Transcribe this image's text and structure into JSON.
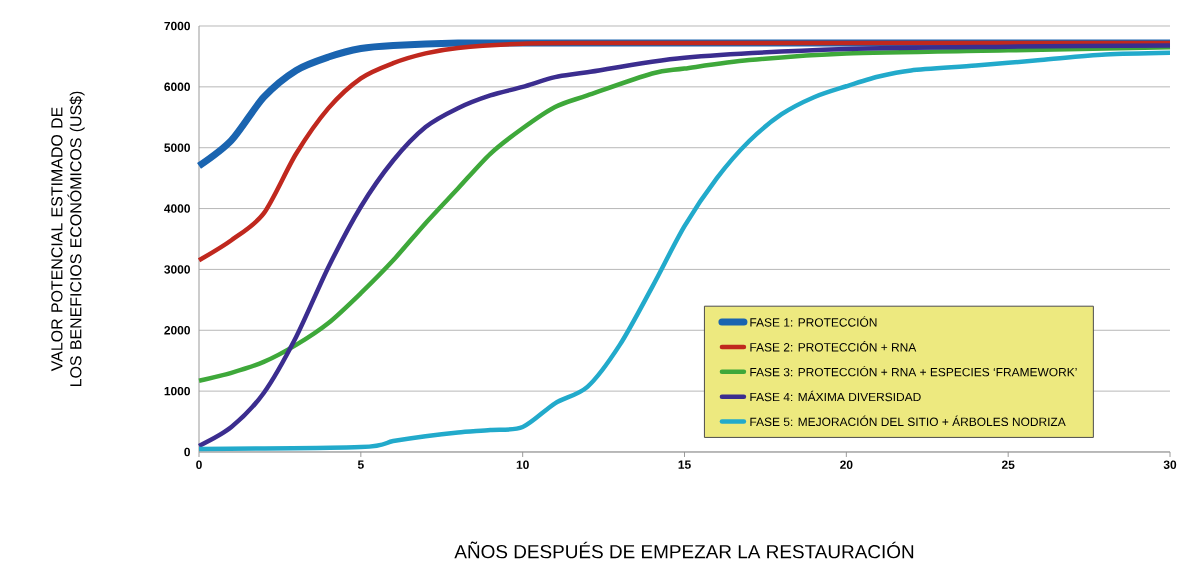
{
  "chart_data": {
    "type": "line",
    "xlabel": "AÑOS DESPUÉS DE EMPEZAR LA RESTAURACIÓN",
    "ylabel": "VALOR POTENCIAL ESTIMADO DE LOS BENEFICIOS ECONÓMICOS (US$)",
    "xlim": [
      0,
      30
    ],
    "ylim": [
      0,
      7000
    ],
    "xticks": [
      0,
      5,
      10,
      15,
      20,
      25,
      30
    ],
    "yticks": [
      0,
      1000,
      2000,
      3000,
      4000,
      5000,
      6000,
      7000
    ],
    "grid": "y",
    "legend": "bottom right",
    "marker": "none",
    "line_style": "solid",
    "series": [
      {
        "name": "FASE 1: PROTECCIÓN",
        "color": "#1a64b0",
        "x": [
          0,
          1,
          2,
          3,
          4,
          5,
          6,
          8,
          10,
          15,
          20,
          25,
          30
        ],
        "values": [
          4700,
          5120,
          5830,
          6270,
          6490,
          6630,
          6680,
          6720,
          6720,
          6720,
          6720,
          6720,
          6720
        ]
      },
      {
        "name": "FASE 2: PROTECCIÓN + RNA",
        "color": "#c0281e",
        "x": [
          0,
          1,
          2,
          3,
          4,
          5,
          6,
          7,
          8,
          10,
          12,
          15,
          20,
          25,
          30
        ],
        "values": [
          3150,
          3480,
          3920,
          4900,
          5650,
          6140,
          6390,
          6550,
          6640,
          6710,
          6720,
          6720,
          6720,
          6720,
          6720
        ]
      },
      {
        "name": "FASE 3: PROTECCIÓN + RNA + ESPECIES ‘FRAMEWORK’",
        "color": "#3ea83a",
        "x": [
          0,
          1,
          2,
          3,
          4,
          5,
          6,
          7,
          8,
          9,
          10,
          11,
          12,
          14,
          15,
          17,
          20,
          25,
          30
        ],
        "values": [
          1170,
          1300,
          1480,
          1760,
          2120,
          2610,
          3150,
          3760,
          4330,
          4900,
          5320,
          5670,
          5860,
          6220,
          6300,
          6440,
          6550,
          6600,
          6650
        ]
      },
      {
        "name": "FASE 4: MÁXIMA DIVERSIDAD",
        "color": "#3b2d8f",
        "x": [
          0,
          1,
          2,
          3,
          4,
          5,
          6,
          7,
          8,
          9,
          10,
          11,
          12,
          15,
          20,
          25,
          30
        ],
        "values": [
          100,
          410,
          970,
          1890,
          3040,
          4030,
          4790,
          5340,
          5650,
          5860,
          6000,
          6160,
          6240,
          6480,
          6620,
          6660,
          6680
        ]
      },
      {
        "name": "FASE 5: MEJORACIÓN DEL SITIO + ÁRBOLES NODRIZA",
        "color": "#22aacb",
        "x": [
          0,
          5,
          6,
          7,
          8,
          9,
          10,
          11,
          12,
          13,
          14,
          15,
          16,
          17,
          18,
          19,
          20,
          21,
          22,
          24,
          26,
          28,
          30
        ],
        "values": [
          50,
          80,
          180,
          260,
          320,
          360,
          410,
          800,
          1070,
          1760,
          2710,
          3710,
          4500,
          5110,
          5550,
          5830,
          6010,
          6170,
          6270,
          6350,
          6440,
          6530,
          6560
        ]
      }
    ]
  }
}
